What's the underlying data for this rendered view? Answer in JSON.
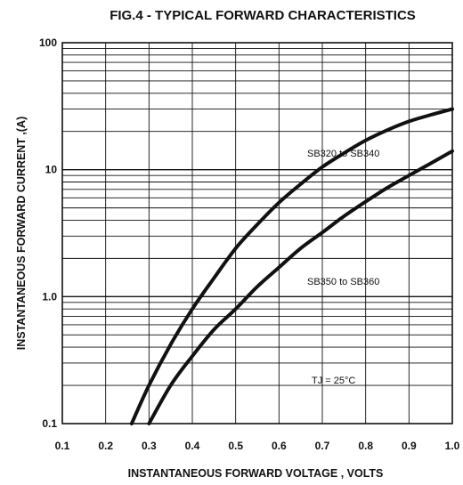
{
  "chart_data": {
    "type": "line",
    "title": "FIG.4 - TYPICAL FORWARD CHARACTERISTICS",
    "xlabel": "INSTANTANEOUS FORWARD VOLTAGE , VOLTS",
    "ylabel": "INSTANTANEOUS  FORWARD CURRENT ,(A)",
    "xlim": [
      0.1,
      1.0
    ],
    "ylim": [
      0.1,
      100
    ],
    "yscale": "log",
    "grid": true,
    "x_ticks": [
      "0.1",
      "0.2",
      "0.3",
      "0.4",
      "0.5",
      "0.6",
      "0.7",
      "0.8",
      "0.9",
      "1.0"
    ],
    "y_ticks": [
      "0.1",
      "1.0",
      "10",
      "100"
    ],
    "series": [
      {
        "name": "SB320 to SB340",
        "x": [
          0.26,
          0.3,
          0.35,
          0.4,
          0.45,
          0.5,
          0.55,
          0.6,
          0.65,
          0.7,
          0.75,
          0.8,
          0.85,
          0.9,
          0.95,
          1.0
        ],
        "y": [
          0.1,
          0.2,
          0.42,
          0.8,
          1.4,
          2.4,
          3.7,
          5.5,
          7.7,
          10.5,
          13.5,
          17,
          20.5,
          24,
          27,
          30
        ]
      },
      {
        "name": "SB350 to SB360",
        "x": [
          0.3,
          0.35,
          0.4,
          0.45,
          0.5,
          0.55,
          0.6,
          0.65,
          0.7,
          0.75,
          0.8,
          0.85,
          0.9,
          0.95,
          1.0
        ],
        "y": [
          0.1,
          0.2,
          0.34,
          0.55,
          0.8,
          1.2,
          1.7,
          2.4,
          3.2,
          4.3,
          5.6,
          7.2,
          9.0,
          11.2,
          14
        ]
      }
    ],
    "annotations": [
      "TJ = 25°C"
    ]
  }
}
